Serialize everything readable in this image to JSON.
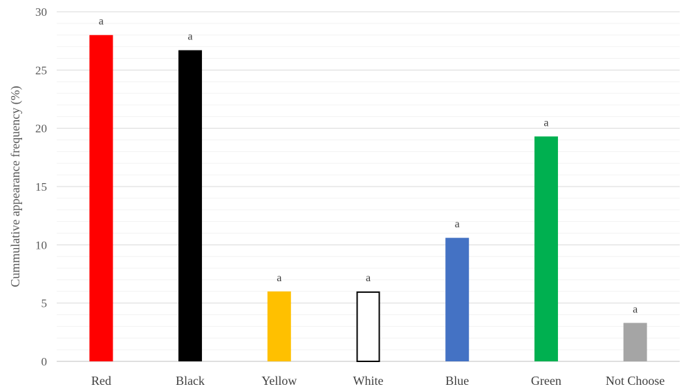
{
  "chart_data": {
    "type": "bar",
    "title": "",
    "xlabel": "",
    "ylabel": "Cummulative appearance frequency (%)",
    "ylim": [
      0,
      30
    ],
    "yticks": [
      0,
      5,
      10,
      15,
      20,
      25,
      30
    ],
    "minor_gridlines": true,
    "legend": "none",
    "categories": [
      "Red",
      "Black",
      "Yellow",
      "White",
      "Blue",
      "Green",
      "Not Choose"
    ],
    "values": [
      28.0,
      26.7,
      6.0,
      6.0,
      10.6,
      19.3,
      3.3
    ],
    "data_labels": [
      "a",
      "a",
      "a",
      "a",
      "a",
      "a",
      "a"
    ],
    "colors": [
      "#ff0000",
      "#000000",
      "#ffc000",
      "#ffffff",
      "#4472c4",
      "#00b050",
      "#a5a5a5"
    ],
    "outline_colors": [
      "none",
      "none",
      "none",
      "#000000",
      "none",
      "none",
      "none"
    ]
  }
}
